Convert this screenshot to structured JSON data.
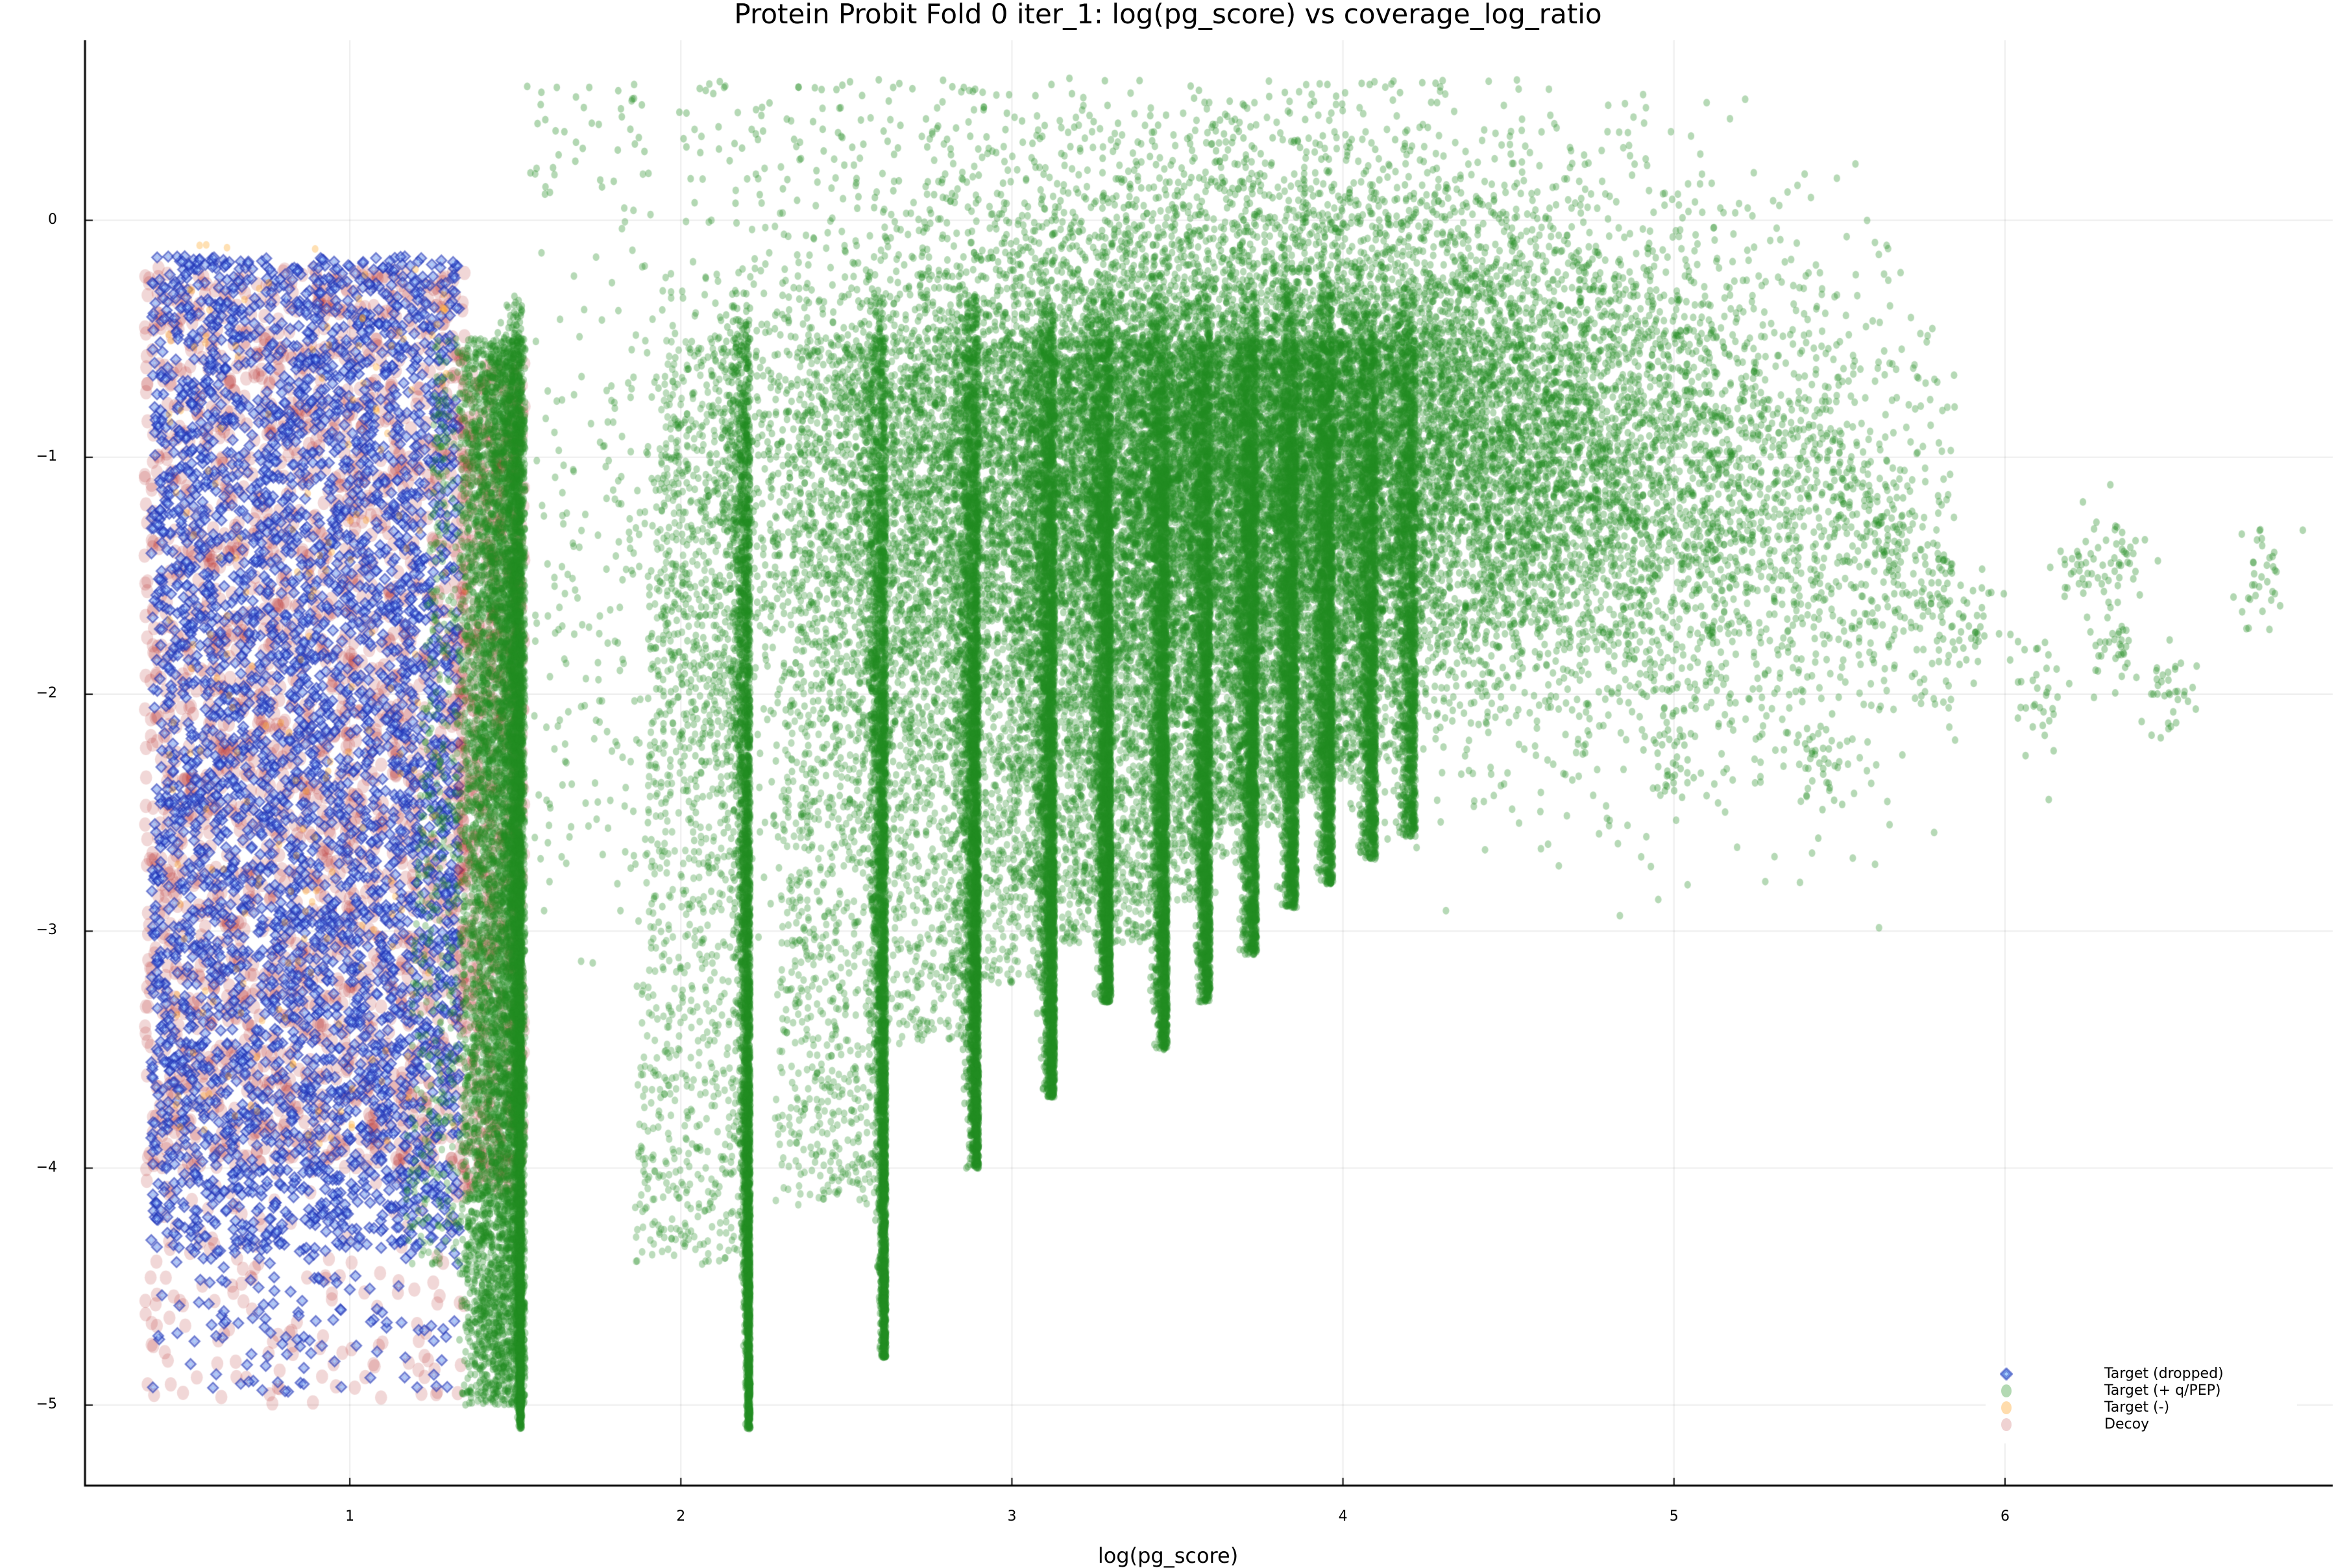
{
  "chart_data": {
    "type": "scatter",
    "title": "Protein Probit Fold 0 iter_1: log(pg_score) vs coverage_log_ratio",
    "xlabel": "log(pg_score)",
    "ylabel": "",
    "xlim": [
      0.2,
      6.99
    ],
    "ylim": [
      -5.34,
      0.76
    ],
    "xticks": [
      1,
      2,
      3,
      4,
      5,
      6
    ],
    "yticks": [
      0,
      -1,
      -2,
      -3,
      -4,
      -5
    ],
    "ytick_labels": [
      "0",
      "−1",
      "−2",
      "−3",
      "−4",
      "−5"
    ],
    "grid": true,
    "legend_position": "bottom-right",
    "series": [
      {
        "name": "Target (dropped)",
        "marker": "diamond",
        "color": "#1f3fbf",
        "alpha": 0.5,
        "x_range": [
          0.4,
          1.33
        ],
        "y_range": [
          -4.95,
          0.0
        ],
        "density": "high, uniform in x, denser between -1 and -4",
        "count_approx": 9000
      },
      {
        "name": "Target (+ q/PEP)",
        "marker": "circle",
        "color": "#228b22",
        "alpha": 0.35,
        "x_range": [
          1.33,
          6.8
        ],
        "y_range": [
          -5.15,
          0.6
        ],
        "peak_region": {
          "x": [
            3.5,
            4.5
          ],
          "y": [
            -1.5,
            -0.5
          ]
        },
        "dense_vertical_stripes_x": [
          1.52,
          2.21,
          2.62,
          2.9,
          3.13,
          3.3,
          3.47,
          3.6,
          3.74,
          3.86,
          3.97,
          4.1,
          4.22
        ],
        "stripe_bottoms_y": [
          -5.1,
          -5.1,
          -4.8,
          -4.0,
          -3.7,
          -3.3,
          -3.5,
          -3.3,
          -3.1,
          -2.9,
          -2.8,
          -2.7,
          -2.6
        ],
        "sparse_clusters": [
          {
            "x": 5.5,
            "y": -1.2
          },
          {
            "x": 5.65,
            "y": -1.3
          },
          {
            "x": 5.8,
            "y": -1.55
          },
          {
            "x": 5.92,
            "y": -1.7
          },
          {
            "x": 6.1,
            "y": -2.0
          },
          {
            "x": 6.22,
            "y": -1.45
          },
          {
            "x": 6.35,
            "y": -1.45
          },
          {
            "x": 6.33,
            "y": -1.8
          },
          {
            "x": 6.5,
            "y": -2.0
          },
          {
            "x": 6.77,
            "y": -1.5
          },
          {
            "x": 5.45,
            "y": -2.25
          },
          {
            "x": 5.0,
            "y": -2.25
          }
        ],
        "count_approx": 120000
      },
      {
        "name": "Target (-)",
        "marker": "circle",
        "color": "#ffa726",
        "alpha": 0.35,
        "x_range": [
          0.4,
          1.35
        ],
        "y_range": [
          -4.0,
          0.0
        ],
        "count_approx": 300
      },
      {
        "name": "Decoy",
        "marker": "circle-large",
        "color": "#b22222",
        "alpha": 0.2,
        "x_range": [
          0.38,
          1.55
        ],
        "y_range": [
          -5.05,
          -0.1
        ],
        "count_approx": 7000
      }
    ]
  },
  "legend": {
    "items": [
      {
        "label": "Target (dropped)"
      },
      {
        "label": "Target (+ q/PEP)"
      },
      {
        "label": "Target (-)"
      },
      {
        "label": "Decoy"
      }
    ]
  },
  "axes": {
    "xticks": [
      {
        "label": "1",
        "value": 1
      },
      {
        "label": "2",
        "value": 2
      },
      {
        "label": "3",
        "value": 3
      },
      {
        "label": "4",
        "value": 4
      },
      {
        "label": "5",
        "value": 5
      },
      {
        "label": "6",
        "value": 6
      }
    ],
    "yticks": [
      {
        "label": "0",
        "value": 0
      },
      {
        "label": "−1",
        "value": -1
      },
      {
        "label": "−2",
        "value": -2
      },
      {
        "label": "−3",
        "value": -3
      },
      {
        "label": "−4",
        "value": -4
      },
      {
        "label": "−5",
        "value": -5
      }
    ]
  }
}
